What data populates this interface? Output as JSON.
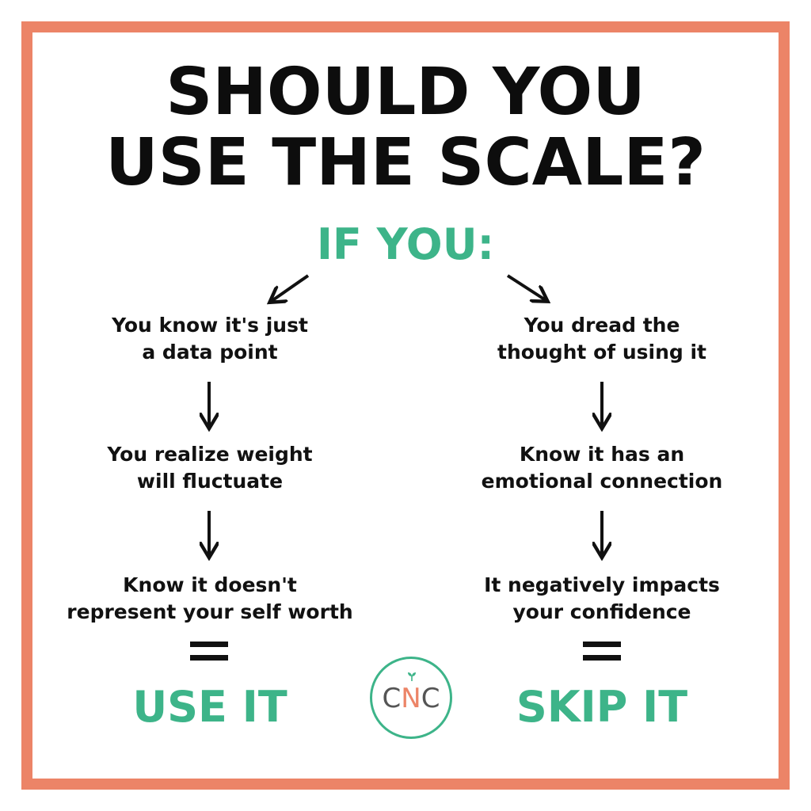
{
  "title": {
    "line1": "SHOULD YOU",
    "line2": "USE THE SCALE?"
  },
  "prompt": "IF YOU:",
  "left": {
    "steps": [
      [
        "You know it's just",
        "a data point"
      ],
      [
        "You realize weight",
        "will fluctuate"
      ],
      [
        "Know it doesn't",
        "represent your self worth"
      ]
    ],
    "result": "USE IT"
  },
  "right": {
    "steps": [
      [
        "You dread the",
        "thought of using it"
      ],
      [
        "Know it has an",
        "emotional connection"
      ],
      [
        "It negatively impacts",
        "your confidence"
      ]
    ],
    "result": "SKIP IT"
  },
  "logo": {
    "c1": "C",
    "n": "N",
    "c2": "C"
  },
  "colors": {
    "border": "#ec8467",
    "accent": "#3db489",
    "text": "#111111"
  },
  "icons": [
    "arrow-down-left-icon",
    "arrow-down-right-icon",
    "arrow-down-icon",
    "equals-icon",
    "sprout-icon"
  ]
}
